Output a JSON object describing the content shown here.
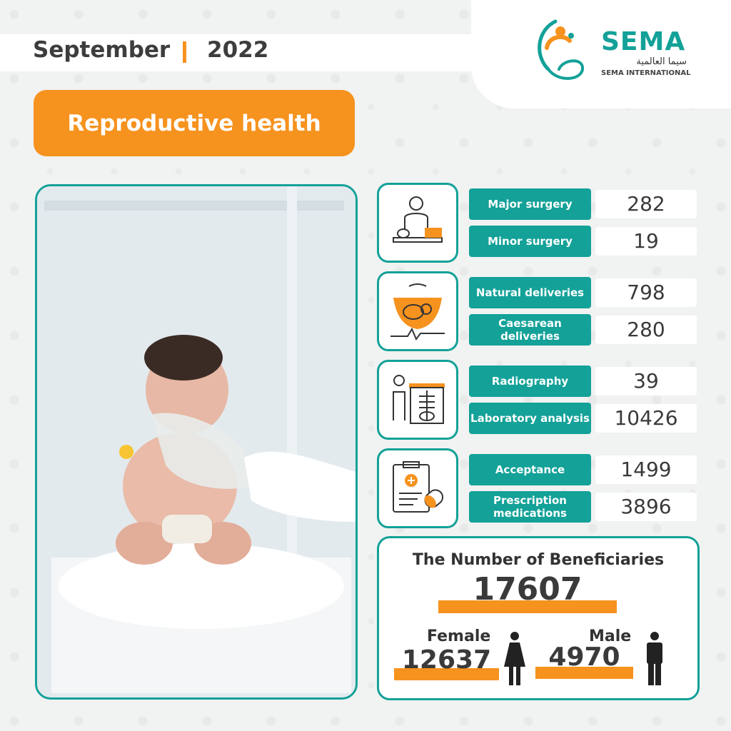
{
  "header": {
    "month": "September",
    "year": "2022"
  },
  "logo": {
    "name": "SEMA",
    "arabic": "سيما العالمية",
    "subtitle": "SEMA INTERNATIONAL"
  },
  "category": "Reproductive health",
  "stats": [
    {
      "icon": "surgery-icon",
      "rows": [
        {
          "label": "Major surgery",
          "value": "282"
        },
        {
          "label": "Minor surgery",
          "value": "19"
        }
      ]
    },
    {
      "icon": "ultrasound-baby-icon",
      "rows": [
        {
          "label": "Natural deliveries",
          "value": "798"
        },
        {
          "label": "Caesarean deliveries",
          "value": "280"
        }
      ]
    },
    {
      "icon": "xray-icon",
      "rows": [
        {
          "label": "Radiography",
          "value": "39"
        },
        {
          "label": "Laboratory analysis",
          "value": "10426"
        }
      ]
    },
    {
      "icon": "prescription-icon",
      "rows": [
        {
          "label": "Acceptance",
          "value": "1499"
        },
        {
          "label": "Prescription medications",
          "value": "3896"
        }
      ]
    }
  ],
  "beneficiaries": {
    "title": "The Number of Beneficiaries",
    "total": "17607",
    "female_label": "Female",
    "female_value": "12637",
    "male_label": "Male",
    "male_value": "4970"
  },
  "colors": {
    "teal": "#13a198",
    "orange": "#f6921e"
  }
}
